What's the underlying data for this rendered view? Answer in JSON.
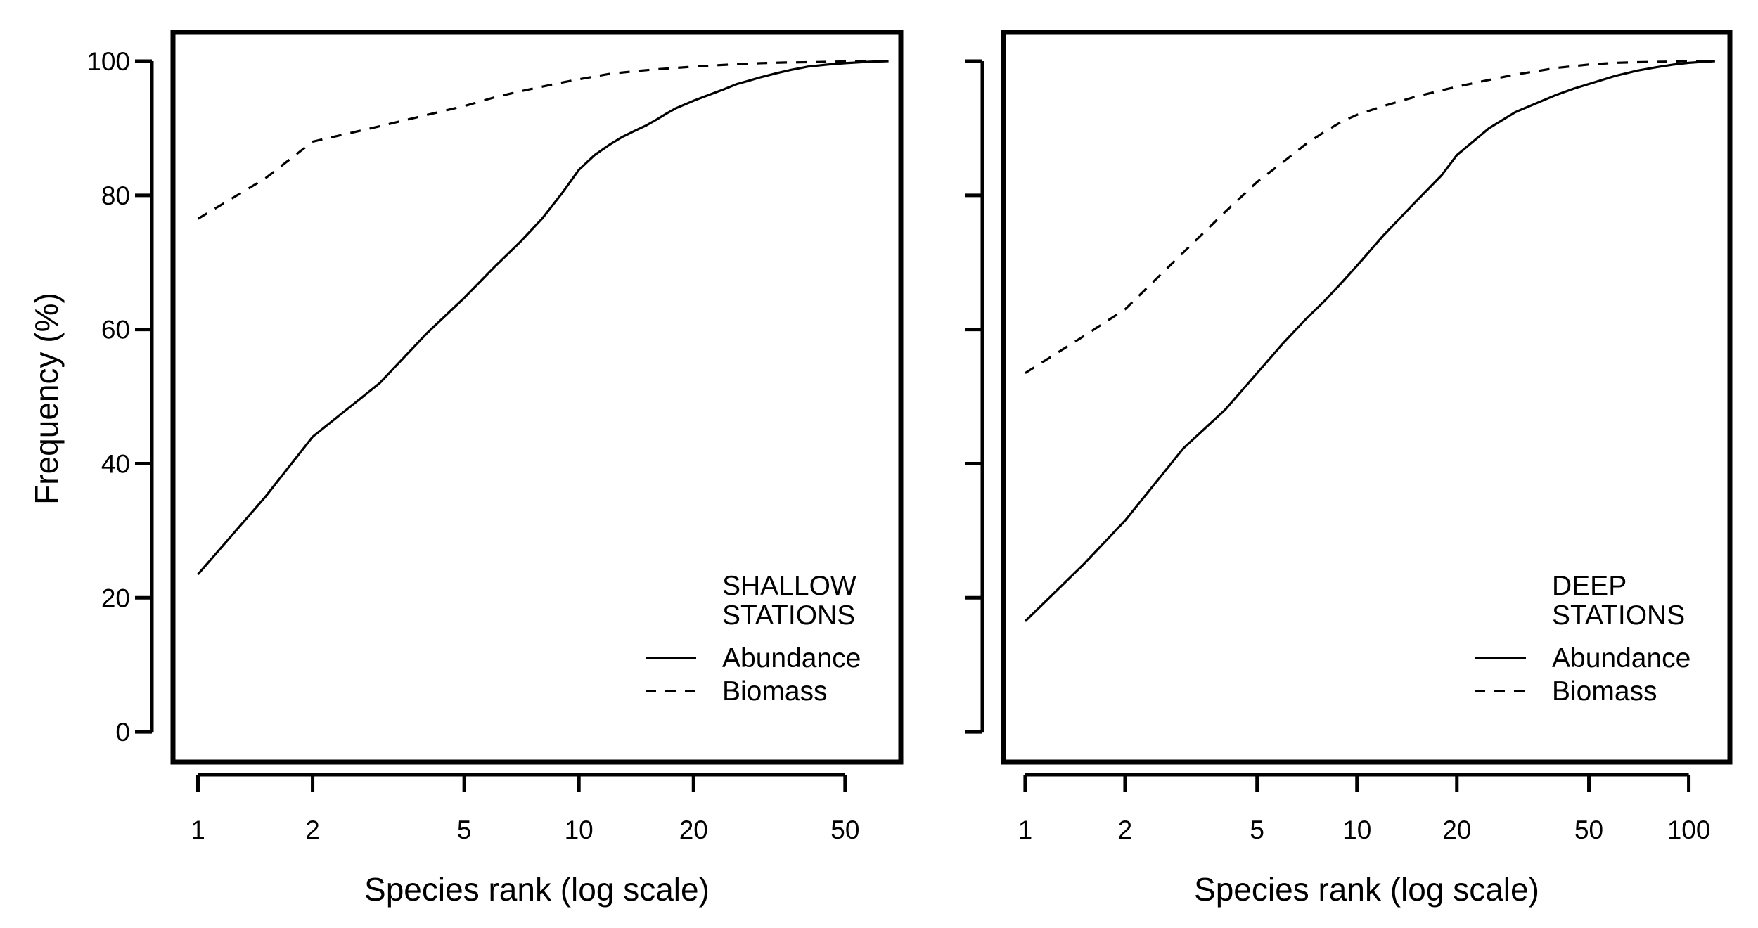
{
  "chart_data": [
    {
      "type": "line",
      "panel_label": [
        "SHALLOW",
        "STATIONS"
      ],
      "xlabel": "Species rank (log scale)",
      "ylabel": "Frequency (%)",
      "x_scale": "log",
      "xlim": [
        0.86,
        70
      ],
      "ylim": [
        -4.5,
        104.3
      ],
      "xticks": [
        1,
        2,
        5,
        10,
        20,
        50
      ],
      "xtick_labels": [
        "1",
        "2",
        "5",
        "10",
        "20",
        "50"
      ],
      "yticks": [
        0,
        20,
        40,
        60,
        80,
        100
      ],
      "ytick_labels": [
        "0",
        "20",
        "40",
        "60",
        "80",
        "100"
      ],
      "grid": false,
      "legend_position": "bottom-right",
      "series": [
        {
          "name": "Abundance",
          "style": "solid",
          "x": [
            1,
            1.5,
            2,
            3,
            4,
            5,
            6,
            7,
            8,
            9,
            10,
            11,
            12,
            13,
            14,
            15,
            16,
            17,
            18,
            20,
            22,
            24,
            26,
            28,
            30,
            33,
            36,
            40,
            45,
            50,
            55,
            60,
            65
          ],
          "y": [
            23.5,
            35,
            44,
            52,
            59.5,
            64.7,
            69.3,
            73,
            76.5,
            80.2,
            83.8,
            86,
            87.5,
            88.7,
            89.6,
            90.4,
            91.3,
            92.2,
            93,
            94.1,
            95,
            95.8,
            96.6,
            97.1,
            97.6,
            98.2,
            98.7,
            99.2,
            99.5,
            99.7,
            99.85,
            99.95,
            100
          ]
        },
        {
          "name": "Biomass",
          "style": "dashed",
          "x": [
            1,
            1.5,
            2,
            3,
            4,
            5,
            6,
            7,
            8,
            9,
            10,
            12,
            14,
            16,
            18,
            20,
            25,
            30,
            35,
            40,
            45,
            50,
            55,
            60,
            65
          ],
          "y": [
            76.5,
            82.5,
            88,
            90.3,
            92,
            93.3,
            94.6,
            95.5,
            96.2,
            96.8,
            97.3,
            98.1,
            98.5,
            98.8,
            99,
            99.2,
            99.5,
            99.7,
            99.8,
            99.85,
            99.9,
            99.95,
            99.97,
            100,
            100
          ]
        }
      ]
    },
    {
      "type": "line",
      "panel_label": [
        "DEEP",
        "STATIONS"
      ],
      "xlabel": "Species rank (log scale)",
      "ylabel": "",
      "x_scale": "log",
      "xlim": [
        0.86,
        133
      ],
      "ylim": [
        -4.5,
        104.3
      ],
      "xticks": [
        1,
        2,
        5,
        10,
        20,
        50,
        100
      ],
      "xtick_labels": [
        "1",
        "2",
        "5",
        "10",
        "20",
        "50",
        "100"
      ],
      "yticks": [
        0,
        20,
        40,
        60,
        80,
        100
      ],
      "ytick_labels": [],
      "grid": false,
      "legend_position": "bottom-right",
      "series": [
        {
          "name": "Abundance",
          "style": "solid",
          "x": [
            1,
            1.5,
            2,
            3,
            4,
            5,
            6,
            7,
            8,
            9,
            10,
            12,
            15,
            18,
            20,
            25,
            30,
            35,
            40,
            45,
            50,
            60,
            70,
            80,
            90,
            100,
            110,
            120
          ],
          "y": [
            16.5,
            25,
            31.5,
            42.3,
            48,
            53.5,
            58,
            61.5,
            64.3,
            67,
            69.5,
            74,
            79,
            83,
            86,
            90,
            92.4,
            93.8,
            95,
            95.9,
            96.6,
            97.8,
            98.6,
            99.1,
            99.5,
            99.75,
            99.9,
            100
          ]
        },
        {
          "name": "Biomass",
          "style": "dashed",
          "x": [
            1,
            1.5,
            2,
            3,
            4,
            5,
            6,
            7,
            8,
            9,
            10,
            12,
            15,
            20,
            25,
            30,
            40,
            50,
            60,
            70,
            80,
            90,
            100,
            110,
            120
          ],
          "y": [
            53.5,
            59,
            63,
            71.5,
            77.5,
            82,
            85,
            87.6,
            89.5,
            91,
            92,
            93.3,
            94.7,
            96.2,
            97.2,
            98,
            99,
            99.5,
            99.75,
            99.85,
            99.9,
            99.95,
            100,
            100,
            100
          ]
        }
      ]
    }
  ]
}
